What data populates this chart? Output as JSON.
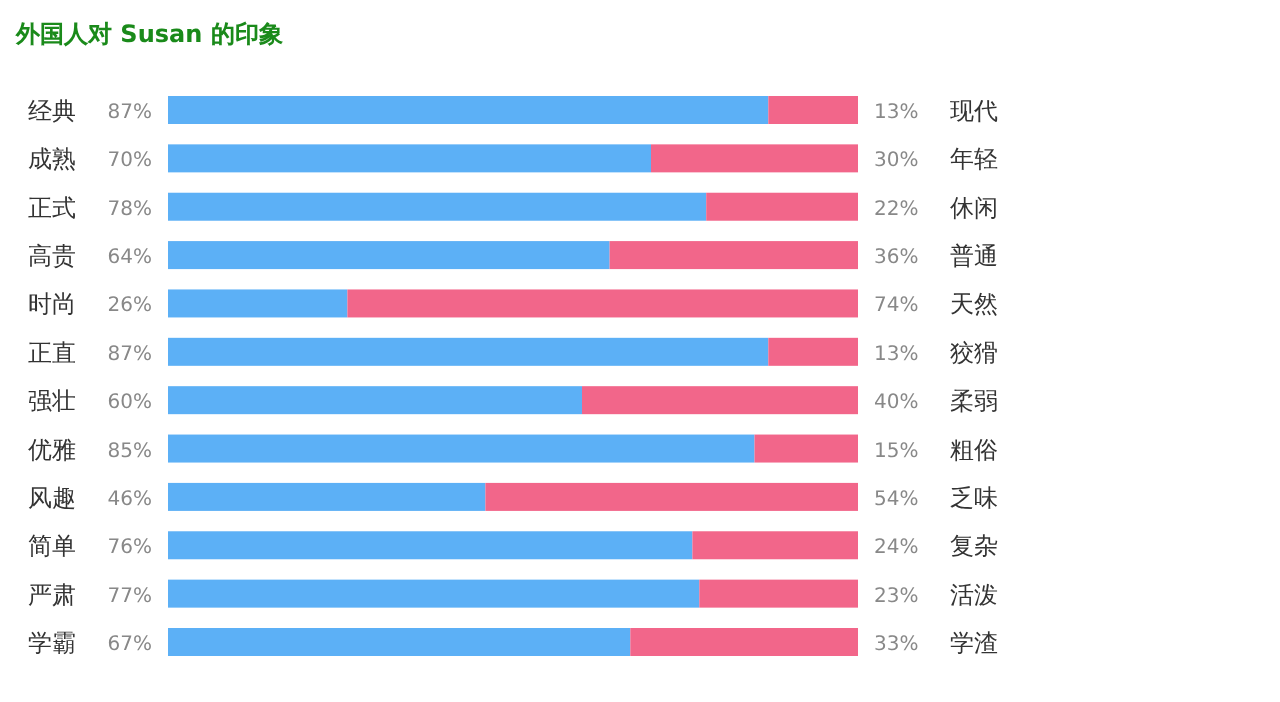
{
  "chart_data": {
    "type": "bar",
    "orientation": "horizontal",
    "stacked": true,
    "title": "外国人对 Susan 的印象",
    "categories": [
      "经典",
      "成熟",
      "正式",
      "高贵",
      "时尚",
      "正直",
      "强壮",
      "优雅",
      "风趣",
      "简单",
      "严肃",
      "学霸"
    ],
    "xlim": [
      0,
      100
    ],
    "tick_labels": "y",
    "series": [
      {
        "color": "#5cb0f6",
        "values": [
          87,
          70,
          78,
          64,
          26,
          87,
          60,
          85,
          46,
          76,
          77,
          67
        ],
        "value_labels": [
          "87%",
          "70%",
          "78%",
          "64%",
          "26%",
          "87%",
          "60%",
          "85%",
          "46%",
          "76%",
          "77%",
          "67%"
        ]
      },
      {
        "color": "#f2668a",
        "values": [
          13,
          30,
          22,
          36,
          74,
          13,
          40,
          15,
          54,
          24,
          23,
          33
        ],
        "value_labels": [
          "13%",
          "30%",
          "22%",
          "36%",
          "74%",
          "13%",
          "40%",
          "15%",
          "54%",
          "24%",
          "23%",
          "33%"
        ]
      }
    ],
    "annotations": [
      "现代",
      "年轻",
      "休闲",
      "普通",
      "天然",
      "狡猾",
      "柔弱",
      "粗俗",
      "乏味",
      "复杂",
      "活泼",
      "学渣"
    ]
  }
}
